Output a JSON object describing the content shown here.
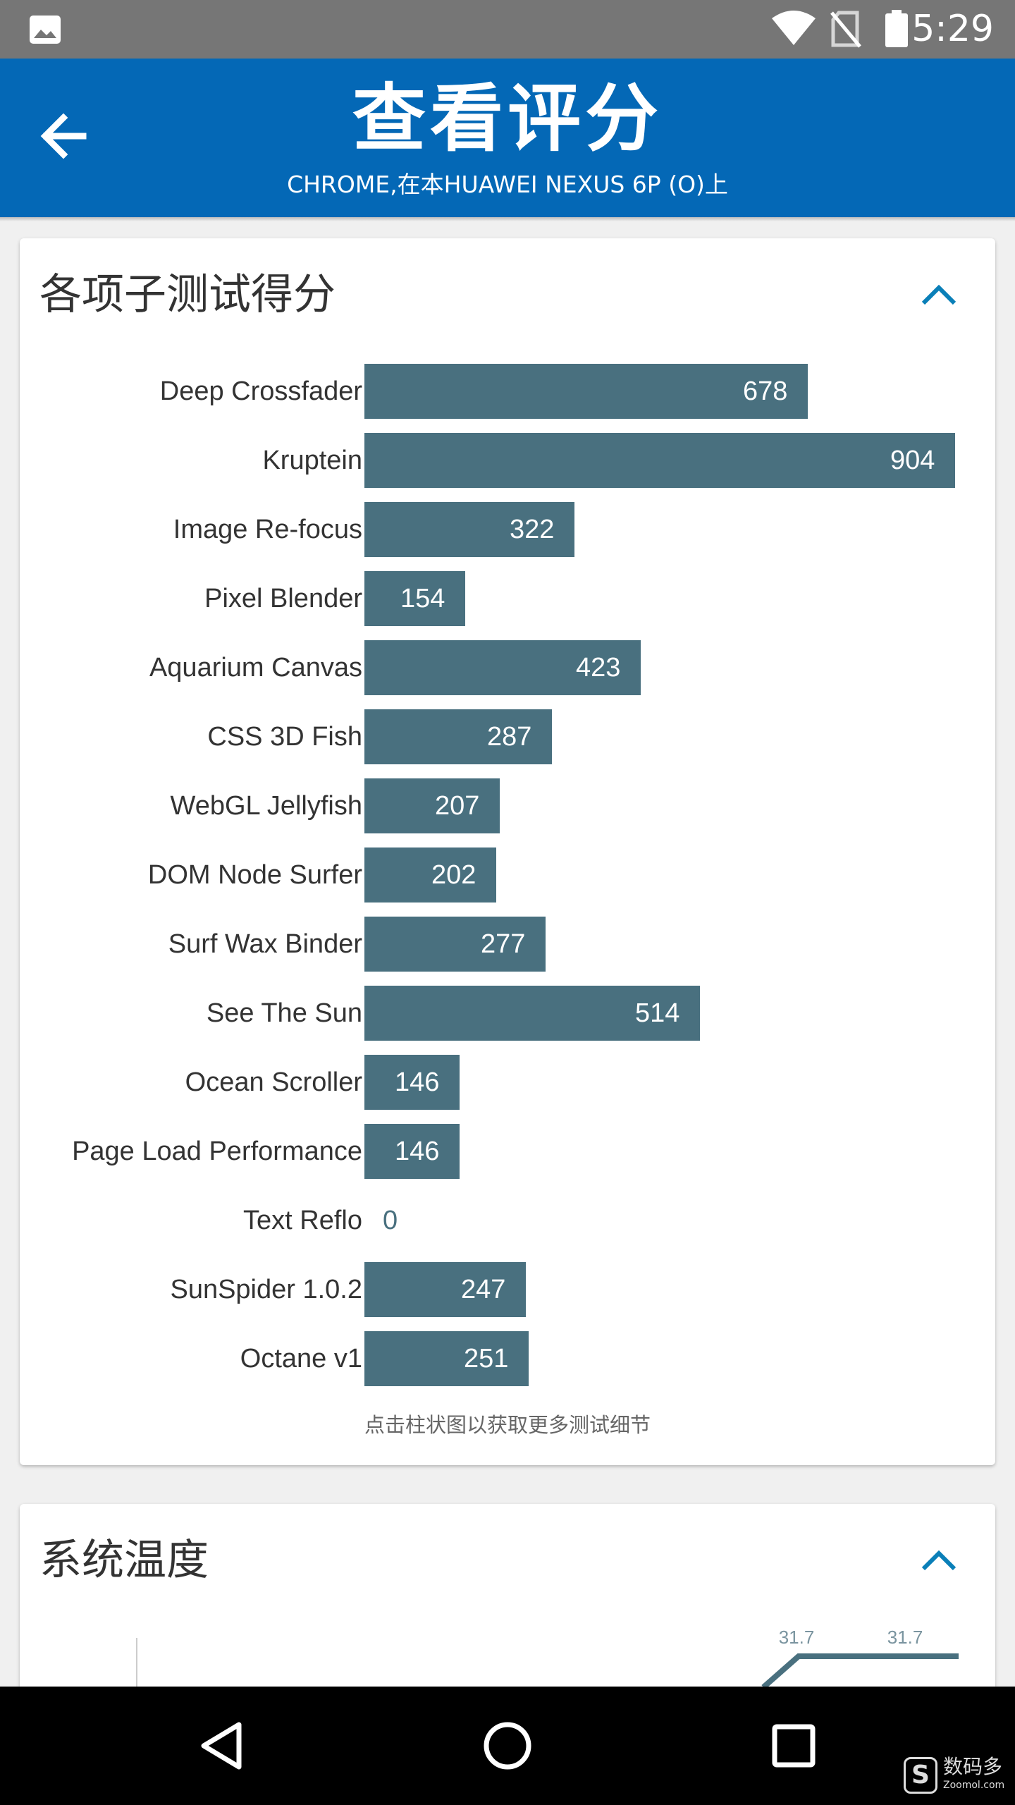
{
  "status_bar": {
    "time": "5:29",
    "icons": [
      "gallery-icon",
      "wifi-icon",
      "no-sim-icon",
      "battery-icon"
    ]
  },
  "app_bar": {
    "title": "查看评分",
    "subtitle": "CHROME,在本HUAWEI NEXUS 6P (O)上",
    "color": "#0468b6"
  },
  "scores_card": {
    "title": "各项子测试得分",
    "note": "点击柱状图以获取更多测试细节"
  },
  "chart_data": {
    "type": "bar",
    "orientation": "horizontal",
    "categories": [
      "Deep Crossfader",
      "Kruptein",
      "Image Re-focus",
      "Pixel Blender",
      "Aquarium Canvas",
      "CSS 3D Fish",
      "WebGL Jellyfish",
      "DOM Node Surfer",
      "Surf Wax Binder",
      "See The Sun",
      "Ocean Scroller",
      "Page Load Performance",
      "Text Reflo",
      "SunSpider 1.0.2",
      "Octane v1"
    ],
    "values": [
      678,
      904,
      322,
      154,
      423,
      287,
      207,
      202,
      277,
      514,
      146,
      146,
      0,
      247,
      251
    ],
    "value_labels": [
      "678",
      "904",
      "322",
      "154",
      "423",
      "287",
      "207",
      "202",
      "277",
      "514",
      "146",
      "146",
      "0",
      "247",
      "251"
    ],
    "xlim": [
      0,
      904
    ],
    "bar_color": "#49707f"
  },
  "temp_card": {
    "title": "系统温度",
    "visible_labels": [
      "31.7",
      "31.7"
    ],
    "line_color": "#49707f"
  },
  "nav_bar": {
    "buttons": [
      "back-icon",
      "home-icon",
      "recent-apps-icon"
    ]
  },
  "watermark": {
    "text": "数码多",
    "url": "Zoomol.com"
  }
}
